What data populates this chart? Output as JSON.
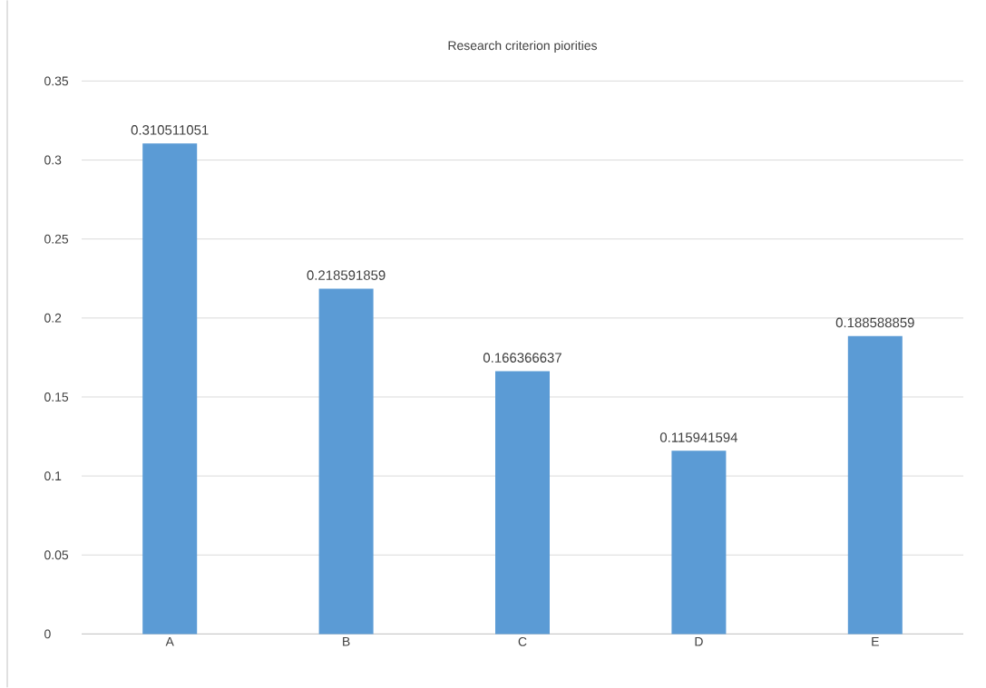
{
  "chart_data": {
    "type": "bar",
    "title": "Research criterion piorities",
    "categories": [
      "A",
      "B",
      "C",
      "D",
      "E"
    ],
    "values": [
      0.310511051,
      0.218591859,
      0.166366637,
      0.115941594,
      0.188588859
    ],
    "color": "#5b9bd5",
    "ylim": [
      0,
      0.35
    ],
    "yticks": [
      0,
      0.05,
      0.1,
      0.15,
      0.2,
      0.25,
      0.3,
      0.35
    ],
    "grid": "y",
    "data_labels": true
  }
}
